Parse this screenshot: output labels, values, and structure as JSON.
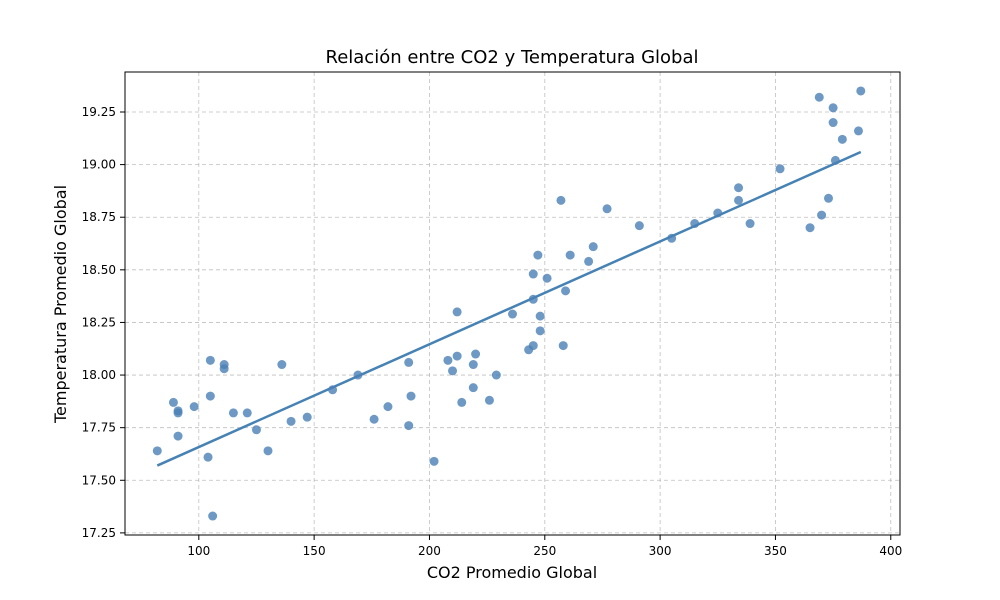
{
  "chart_data": {
    "type": "scatter",
    "title": "Relación entre CO2 y Temperatura Global",
    "xlabel": "CO2 Promedio Global",
    "ylabel": "Temperatura Promedio Global",
    "xlim": [
      68,
      404
    ],
    "ylim": [
      17.24,
      19.44
    ],
    "x_ticks": [
      100,
      150,
      200,
      250,
      300,
      350,
      400
    ],
    "y_ticks": [
      17.25,
      17.5,
      17.75,
      18.0,
      18.25,
      18.5,
      18.75,
      19.0,
      19.25
    ],
    "y_tick_labels": [
      "17.25",
      "17.50",
      "17.75",
      "18.00",
      "18.25",
      "18.50",
      "18.75",
      "19.00",
      "19.25"
    ],
    "grid": true,
    "colors": {
      "points": "#4a7fb5",
      "trend": "#4682b4"
    },
    "series": [
      {
        "points": [
          [
            82,
            17.64
          ],
          [
            89,
            17.87
          ],
          [
            91,
            17.82
          ],
          [
            91,
            17.83
          ],
          [
            91,
            17.71
          ],
          [
            98,
            17.85
          ],
          [
            104,
            17.61
          ],
          [
            105,
            17.9
          ],
          [
            105,
            18.07
          ],
          [
            106,
            17.33
          ],
          [
            111,
            18.05
          ],
          [
            111,
            18.03
          ],
          [
            115,
            17.82
          ],
          [
            121,
            17.82
          ],
          [
            125,
            17.74
          ],
          [
            130,
            17.64
          ],
          [
            136,
            18.05
          ],
          [
            140,
            17.78
          ],
          [
            147,
            17.8
          ],
          [
            158,
            17.93
          ],
          [
            169,
            18.0
          ],
          [
            176,
            17.79
          ],
          [
            182,
            17.85
          ],
          [
            191,
            17.76
          ],
          [
            191,
            18.06
          ],
          [
            192,
            17.9
          ],
          [
            202,
            17.59
          ],
          [
            208,
            18.07
          ],
          [
            210,
            18.02
          ],
          [
            212,
            18.3
          ],
          [
            212,
            18.09
          ],
          [
            214,
            17.87
          ],
          [
            219,
            17.94
          ],
          [
            219,
            18.05
          ],
          [
            220,
            18.1
          ],
          [
            226,
            17.88
          ],
          [
            229,
            18.0
          ],
          [
            236,
            18.29
          ],
          [
            243,
            18.12
          ],
          [
            245,
            18.14
          ],
          [
            245,
            18.36
          ],
          [
            245,
            18.48
          ],
          [
            247,
            18.57
          ],
          [
            248,
            18.21
          ],
          [
            248,
            18.28
          ],
          [
            251,
            18.46
          ],
          [
            257,
            18.83
          ],
          [
            258,
            18.14
          ],
          [
            259,
            18.4
          ],
          [
            261,
            18.57
          ],
          [
            269,
            18.54
          ],
          [
            271,
            18.61
          ],
          [
            277,
            18.79
          ],
          [
            291,
            18.71
          ],
          [
            305,
            18.65
          ],
          [
            315,
            18.72
          ],
          [
            325,
            18.77
          ],
          [
            334,
            18.83
          ],
          [
            334,
            18.89
          ],
          [
            339,
            18.72
          ],
          [
            352,
            18.98
          ],
          [
            365,
            18.7
          ],
          [
            369,
            19.32
          ],
          [
            370,
            18.76
          ],
          [
            373,
            18.84
          ],
          [
            375,
            19.27
          ],
          [
            375,
            19.2
          ],
          [
            376,
            19.02
          ],
          [
            379,
            19.12
          ],
          [
            386,
            19.16
          ],
          [
            387,
            19.35
          ]
        ]
      }
    ],
    "trend_line": {
      "x": [
        82,
        387
      ],
      "y": [
        17.57,
        19.06
      ]
    }
  }
}
